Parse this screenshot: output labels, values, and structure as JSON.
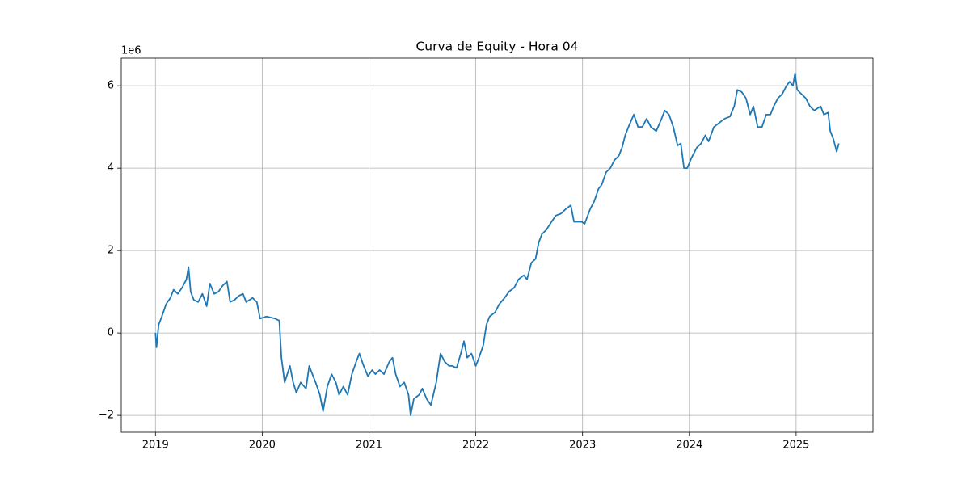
{
  "chart_data": {
    "type": "line",
    "title": "Curva de Equity - Hora 04",
    "y_offset_label": "1e6",
    "x": [
      2019.0,
      2019.01,
      2019.03,
      2019.06,
      2019.1,
      2019.14,
      2019.17,
      2019.21,
      2019.25,
      2019.29,
      2019.31,
      2019.33,
      2019.36,
      2019.4,
      2019.44,
      2019.48,
      2019.51,
      2019.55,
      2019.59,
      2019.63,
      2019.67,
      2019.7,
      2019.74,
      2019.78,
      2019.82,
      2019.85,
      2019.91,
      2019.95,
      2019.98,
      2020.04,
      2020.12,
      2020.16,
      2020.18,
      2020.21,
      2020.26,
      2020.29,
      2020.32,
      2020.36,
      2020.41,
      2020.44,
      2020.5,
      2020.54,
      2020.57,
      2020.61,
      2020.65,
      2020.69,
      2020.72,
      2020.76,
      2020.8,
      2020.84,
      2020.88,
      2020.91,
      2020.95,
      2020.99,
      2021.03,
      2021.06,
      2021.1,
      2021.14,
      2021.19,
      2021.22,
      2021.25,
      2021.29,
      2021.33,
      2021.37,
      2021.39,
      2021.42,
      2021.47,
      2021.5,
      2021.54,
      2021.58,
      2021.63,
      2021.67,
      2021.71,
      2021.75,
      2021.78,
      2021.82,
      2021.86,
      2021.89,
      2021.92,
      2021.96,
      2022.0,
      2022.03,
      2022.07,
      2022.1,
      2022.13,
      2022.18,
      2022.22,
      2022.27,
      2022.31,
      2022.36,
      2022.4,
      2022.45,
      2022.48,
      2022.52,
      2022.56,
      2022.59,
      2022.62,
      2022.66,
      2022.71,
      2022.75,
      2022.8,
      2022.84,
      2022.89,
      2022.92,
      2022.96,
      2022.99,
      2023.02,
      2023.07,
      2023.11,
      2023.15,
      2023.18,
      2023.22,
      2023.26,
      2023.3,
      2023.34,
      2023.37,
      2023.4,
      2023.43,
      2023.48,
      2023.52,
      2023.56,
      2023.6,
      2023.64,
      2023.69,
      2023.74,
      2023.77,
      2023.81,
      2023.85,
      2023.89,
      2023.92,
      2023.95,
      2023.98,
      2024.02,
      2024.07,
      2024.11,
      2024.15,
      2024.18,
      2024.23,
      2024.28,
      2024.33,
      2024.38,
      2024.42,
      2024.45,
      2024.49,
      2024.53,
      2024.57,
      2024.6,
      2024.64,
      2024.68,
      2024.72,
      2024.76,
      2024.79,
      2024.83,
      2024.87,
      2024.91,
      2024.94,
      2024.97,
      2024.99,
      2025.01,
      2025.05,
      2025.09,
      2025.13,
      2025.17,
      2025.23,
      2025.26,
      2025.3,
      2025.32,
      2025.35,
      2025.38,
      2025.4
    ],
    "series": [
      {
        "color": "#1f77b4",
        "values": [
          0,
          -0.35,
          0.2,
          0.4,
          0.7,
          0.85,
          1.05,
          0.95,
          1.1,
          1.3,
          1.6,
          1.0,
          0.8,
          0.75,
          0.95,
          0.65,
          1.2,
          0.95,
          1.0,
          1.15,
          1.25,
          0.75,
          0.8,
          0.9,
          0.95,
          0.75,
          0.85,
          0.75,
          0.35,
          0.4,
          0.35,
          0.3,
          -0.6,
          -1.2,
          -0.8,
          -1.2,
          -1.45,
          -1.2,
          -1.35,
          -0.8,
          -1.2,
          -1.5,
          -1.9,
          -1.3,
          -1.0,
          -1.2,
          -1.5,
          -1.3,
          -1.5,
          -1.0,
          -0.7,
          -0.5,
          -0.8,
          -1.05,
          -0.9,
          -1.0,
          -0.9,
          -1.0,
          -0.7,
          -0.6,
          -1.0,
          -1.3,
          -1.2,
          -1.5,
          -2.0,
          -1.6,
          -1.5,
          -1.35,
          -1.6,
          -1.75,
          -1.2,
          -0.5,
          -0.7,
          -0.8,
          -0.8,
          -0.85,
          -0.5,
          -0.2,
          -0.6,
          -0.5,
          -0.8,
          -0.6,
          -0.3,
          0.2,
          0.4,
          0.5,
          0.7,
          0.85,
          1.0,
          1.1,
          1.3,
          1.4,
          1.3,
          1.7,
          1.8,
          2.2,
          2.4,
          2.5,
          2.7,
          2.85,
          2.9,
          3.0,
          3.1,
          2.7,
          2.7,
          2.7,
          2.65,
          3.0,
          3.2,
          3.5,
          3.6,
          3.9,
          4.0,
          4.2,
          4.3,
          4.5,
          4.8,
          5.0,
          5.3,
          5.0,
          5.0,
          5.2,
          5.0,
          4.9,
          5.2,
          5.4,
          5.3,
          5.0,
          4.55,
          4.6,
          4.0,
          4.0,
          4.25,
          4.5,
          4.6,
          4.8,
          4.65,
          5.0,
          5.1,
          5.2,
          5.25,
          5.5,
          5.9,
          5.85,
          5.7,
          5.3,
          5.5,
          5.0,
          5.0,
          5.3,
          5.3,
          5.5,
          5.7,
          5.8,
          6.0,
          6.1,
          6.0,
          6.3,
          5.9,
          5.8,
          5.7,
          5.5,
          5.4,
          5.5,
          5.3,
          5.35,
          4.9,
          4.7,
          4.4,
          4.6
        ]
      }
    ],
    "xlim": [
      2018.68,
      2025.72
    ],
    "xticks": [
      2019,
      2020,
      2021,
      2022,
      2023,
      2024,
      2025
    ],
    "ylim": [
      -2.41,
      6.67
    ],
    "yticks": [
      {
        "value": -2,
        "label": "−2"
      },
      0,
      2,
      4,
      6
    ],
    "grid": true
  }
}
